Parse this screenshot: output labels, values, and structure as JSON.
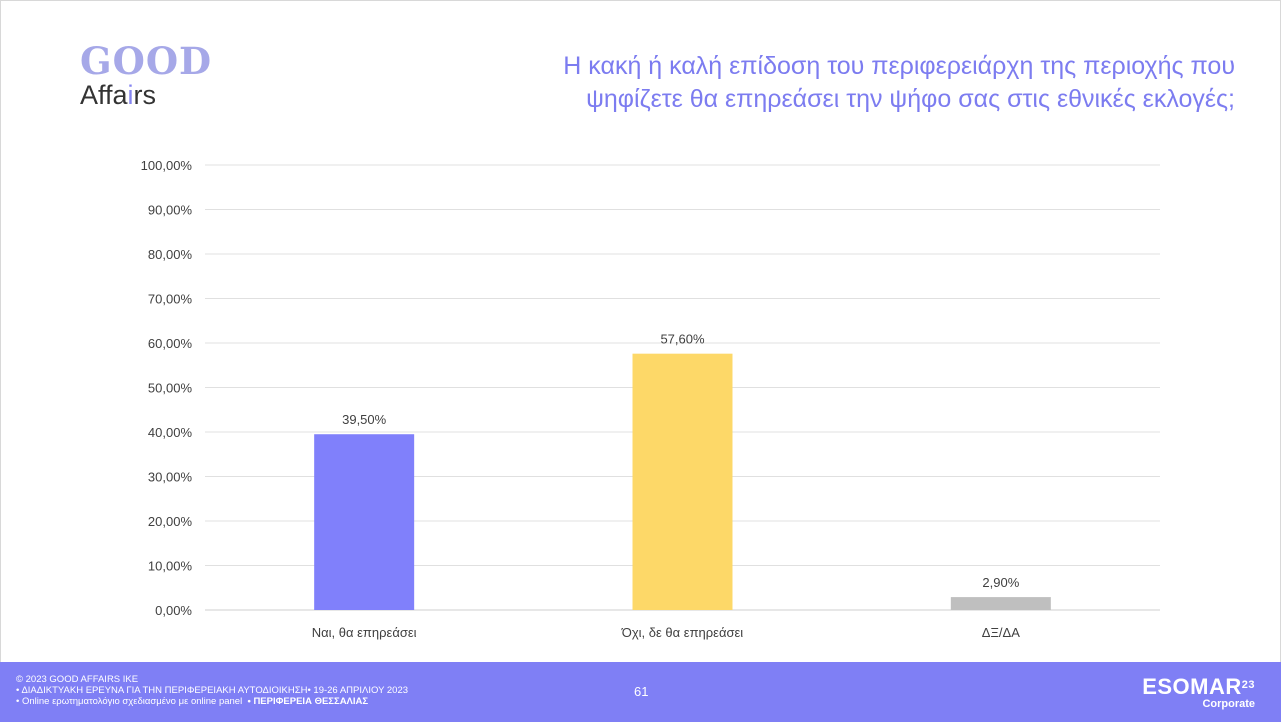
{
  "logo": {
    "good": "GOOD",
    "affairs_pre": "Affa",
    "affairs_i": "i",
    "affairs_post": "rs"
  },
  "title_line1": "Η κακή ή καλή επίδοση του περιφερειάρχη της περιοχής που",
  "title_line2": "ψηφίζετε θα επηρεάσει την ψήφο σας στις εθνικές εκλογές;",
  "chart_data": {
    "type": "bar",
    "title": "Η κακή ή καλή επίδοση του περιφερειάρχη της περιοχής που ψηφίζετε θα επηρεάσει την ψήφο σας στις εθνικές εκλογές;",
    "categories": [
      "Ναι, θα επηρεάσει",
      "Όχι, δε θα επηρεάσει",
      "ΔΞ/ΔΑ"
    ],
    "values": [
      39.5,
      57.6,
      2.9
    ],
    "value_labels": [
      "39,50%",
      "57,60%",
      "2,90%"
    ],
    "colors": [
      "#8080fb",
      "#fdd868",
      "#bfbfbf"
    ],
    "ylim": [
      0,
      100
    ],
    "yticks": [
      "0,00%",
      "10,00%",
      "20,00%",
      "30,00%",
      "40,00%",
      "50,00%",
      "60,00%",
      "70,00%",
      "80,00%",
      "90,00%",
      "100,00%"
    ],
    "grid": true,
    "xlabel": "",
    "ylabel": ""
  },
  "footer": {
    "line1": "© 2023 GOOD AFFAIRS IKE",
    "line2": "• ΔΙΑΔΙΚΤΥΑΚΗ ΕΡΕΥΝΑ  ΓΙΑ ΤΗΝ ΠΕΡΙΦΕΡΕΙΑΚΗ ΑΥΤΟΔΙΟΙΚΗΣΗ• 19-26 ΑΠΡΙΛΙΟΥ 2023",
    "line3_prefix": "• Online ερωτηματολόγιο σχεδιασμένο με online panel",
    "line3_bold": "• ΠΕΡΙΦΕΡΕΙΑ ΘΕΣΣΑΛΙΑΣ",
    "page": "61",
    "esomar": "ESOMAR",
    "esomar_sup": "23",
    "esomar_sub": "Corporate"
  }
}
